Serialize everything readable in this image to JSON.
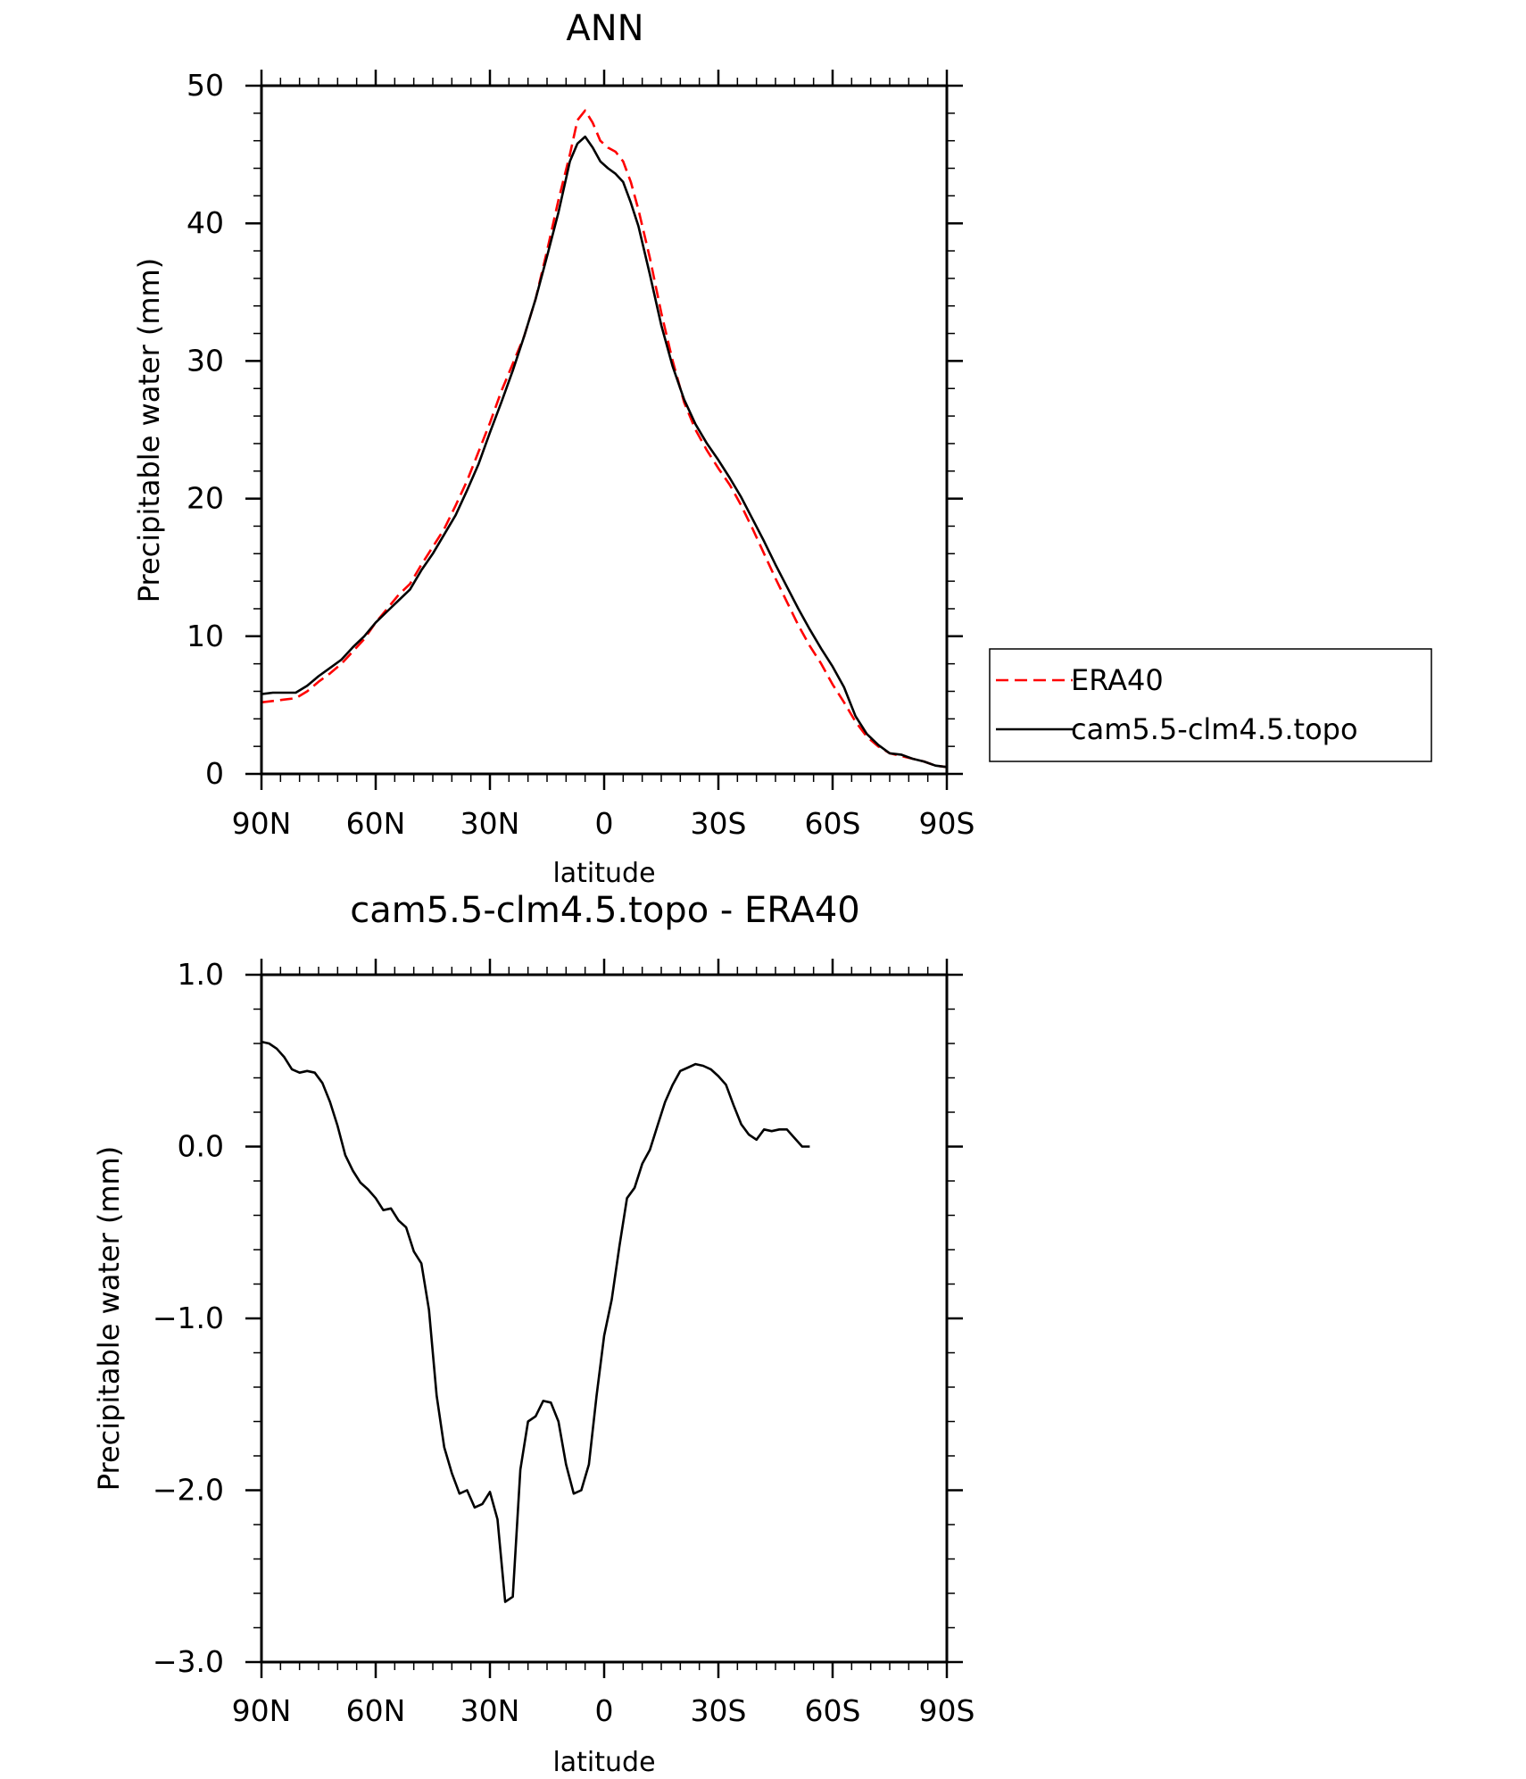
{
  "chart_data": [
    {
      "type": "line",
      "title": "ANN",
      "xlabel": "latitude",
      "ylabel": "Precipitable water (mm)",
      "xlim": [
        -90,
        90
      ],
      "ylim": [
        0,
        50
      ],
      "x_ticks": [
        {
          "value": -90,
          "label": "90N"
        },
        {
          "value": -60,
          "label": "60N"
        },
        {
          "value": -30,
          "label": "30N"
        },
        {
          "value": 0,
          "label": "0"
        },
        {
          "value": 30,
          "label": "30S"
        },
        {
          "value": 60,
          "label": "60S"
        },
        {
          "value": 90,
          "label": "90S"
        }
      ],
      "y_ticks": [
        {
          "value": 0,
          "label": "0"
        },
        {
          "value": 10,
          "label": "10"
        },
        {
          "value": 20,
          "label": "20"
        },
        {
          "value": 30,
          "label": "30"
        },
        {
          "value": 40,
          "label": "40"
        },
        {
          "value": 50,
          "label": "50"
        }
      ],
      "legend": {
        "position": "right"
      },
      "series": [
        {
          "name": "ERA40",
          "color": "#ff0000",
          "style": "dashed",
          "points": [
            [
              -90,
              5.2
            ],
            [
              -87,
              5.3
            ],
            [
              -84,
              5.4
            ],
            [
              -81,
              5.5
            ],
            [
              -78,
              6.0
            ],
            [
              -75,
              6.7
            ],
            [
              -72,
              7.3
            ],
            [
              -69,
              8.0
            ],
            [
              -66,
              8.9
            ],
            [
              -63,
              9.8
            ],
            [
              -60,
              11.0
            ],
            [
              -57,
              12.0
            ],
            [
              -54,
              13.0
            ],
            [
              -51,
              13.8
            ],
            [
              -48,
              15.2
            ],
            [
              -45,
              16.5
            ],
            [
              -42,
              17.8
            ],
            [
              -39,
              19.5
            ],
            [
              -36,
              21.3
            ],
            [
              -33,
              23.4
            ],
            [
              -30,
              25.5
            ],
            [
              -27,
              27.8
            ],
            [
              -24,
              29.8
            ],
            [
              -21,
              31.8
            ],
            [
              -18,
              34.5
            ],
            [
              -15,
              38.0
            ],
            [
              -12,
              41.7
            ],
            [
              -9,
              45.0
            ],
            [
              -7,
              47.5
            ],
            [
              -5,
              48.2
            ],
            [
              -3,
              47.3
            ],
            [
              -1,
              46.0
            ],
            [
              1,
              45.5
            ],
            [
              3,
              45.2
            ],
            [
              5,
              44.5
            ],
            [
              7,
              43.0
            ],
            [
              9,
              41.0
            ],
            [
              12,
              37.5
            ],
            [
              15,
              33.5
            ],
            [
              18,
              30.0
            ],
            [
              21,
              27.0
            ],
            [
              24,
              25.0
            ],
            [
              27,
              23.5
            ],
            [
              30,
              22.2
            ],
            [
              33,
              21.0
            ],
            [
              36,
              19.5
            ],
            [
              39,
              17.8
            ],
            [
              42,
              16.0
            ],
            [
              45,
              14.2
            ],
            [
              48,
              12.5
            ],
            [
              51,
              10.8
            ],
            [
              54,
              9.3
            ],
            [
              57,
              8.0
            ],
            [
              60,
              6.5
            ],
            [
              63,
              5.2
            ],
            [
              66,
              3.8
            ],
            [
              69,
              2.7
            ],
            [
              72,
              2.0
            ],
            [
              75,
              1.5
            ],
            [
              78,
              1.3
            ],
            [
              81,
              1.1
            ],
            [
              84,
              0.9
            ],
            [
              87,
              0.6
            ],
            [
              90,
              0.5
            ]
          ]
        },
        {
          "name": "cam5.5-clm4.5.topo",
          "color": "#000000",
          "style": "solid",
          "points": [
            [
              -90,
              5.8
            ],
            [
              -87,
              5.9
            ],
            [
              -84,
              5.9
            ],
            [
              -81,
              5.9
            ],
            [
              -78,
              6.4
            ],
            [
              -75,
              7.1
            ],
            [
              -72,
              7.7
            ],
            [
              -69,
              8.3
            ],
            [
              -66,
              9.2
            ],
            [
              -63,
              10.0
            ],
            [
              -60,
              11.0
            ],
            [
              -57,
              11.8
            ],
            [
              -54,
              12.6
            ],
            [
              -51,
              13.4
            ],
            [
              -48,
              14.8
            ],
            [
              -45,
              16.0
            ],
            [
              -42,
              17.4
            ],
            [
              -39,
              18.8
            ],
            [
              -36,
              20.6
            ],
            [
              -33,
              22.5
            ],
            [
              -30,
              24.8
            ],
            [
              -27,
              27.0
            ],
            [
              -24,
              29.3
            ],
            [
              -21,
              31.8
            ],
            [
              -18,
              34.5
            ],
            [
              -15,
              37.6
            ],
            [
              -12,
              40.8
            ],
            [
              -9,
              44.5
            ],
            [
              -7,
              45.8
            ],
            [
              -5,
              46.3
            ],
            [
              -3,
              45.5
            ],
            [
              -1,
              44.5
            ],
            [
              1,
              44.0
            ],
            [
              3,
              43.6
            ],
            [
              5,
              43.0
            ],
            [
              7,
              41.5
            ],
            [
              9,
              39.8
            ],
            [
              12,
              36.3
            ],
            [
              15,
              32.6
            ],
            [
              18,
              29.6
            ],
            [
              21,
              27.2
            ],
            [
              24,
              25.4
            ],
            [
              27,
              24.0
            ],
            [
              30,
              22.8
            ],
            [
              33,
              21.5
            ],
            [
              36,
              20.1
            ],
            [
              39,
              18.5
            ],
            [
              42,
              16.9
            ],
            [
              45,
              15.2
            ],
            [
              48,
              13.6
            ],
            [
              51,
              12.0
            ],
            [
              54,
              10.5
            ],
            [
              57,
              9.1
            ],
            [
              60,
              7.8
            ],
            [
              63,
              6.3
            ],
            [
              66,
              4.2
            ],
            [
              69,
              2.9
            ],
            [
              72,
              2.1
            ],
            [
              75,
              1.5
            ],
            [
              78,
              1.4
            ],
            [
              81,
              1.1
            ],
            [
              84,
              0.9
            ],
            [
              87,
              0.6
            ],
            [
              90,
              0.5
            ]
          ]
        }
      ]
    },
    {
      "type": "line",
      "title": "cam5.5-clm4.5.topo - ERA40",
      "xlabel": "latitude",
      "ylabel": "Precipitable water (mm)",
      "xlim": [
        -90,
        90
      ],
      "ylim": [
        -3.0,
        1.0
      ],
      "x_ticks": [
        {
          "value": -90,
          "label": "90N"
        },
        {
          "value": -60,
          "label": "60N"
        },
        {
          "value": -30,
          "label": "30N"
        },
        {
          "value": 0,
          "label": "0"
        },
        {
          "value": 30,
          "label": "30S"
        },
        {
          "value": 60,
          "label": "60S"
        },
        {
          "value": 90,
          "label": "90S"
        }
      ],
      "y_ticks": [
        {
          "value": -3.0,
          "label": "−3.0"
        },
        {
          "value": -2.0,
          "label": "−2.0"
        },
        {
          "value": -1.0,
          "label": "−1.0"
        },
        {
          "value": 0.0,
          "label": "0.0"
        },
        {
          "value": 1.0,
          "label": "1.0"
        }
      ],
      "series": [
        {
          "color": "#000000",
          "style": "solid",
          "points": [
            [
              -90,
              0.61
            ],
            [
              -88,
              0.6
            ],
            [
              -86,
              0.57
            ],
            [
              -84,
              0.52
            ],
            [
              -82,
              0.45
            ],
            [
              -80,
              0.43
            ],
            [
              -78,
              0.44
            ],
            [
              -76,
              0.43
            ],
            [
              -74,
              0.37
            ],
            [
              -72,
              0.26
            ],
            [
              -70,
              0.12
            ],
            [
              -68,
              -0.05
            ],
            [
              -66,
              -0.14
            ],
            [
              -64,
              -0.21
            ],
            [
              -62,
              -0.25
            ],
            [
              -60,
              -0.3
            ],
            [
              -58,
              -0.37
            ],
            [
              -56,
              -0.36
            ],
            [
              -54,
              -0.43
            ],
            [
              -52,
              -0.47
            ],
            [
              -50,
              -0.61
            ],
            [
              -48,
              -0.68
            ],
            [
              -46,
              -0.95
            ],
            [
              -44,
              -1.45
            ],
            [
              -42,
              -1.75
            ],
            [
              -40,
              -1.9
            ],
            [
              -38,
              -2.02
            ],
            [
              -36,
              -2.0
            ],
            [
              -34,
              -2.1
            ],
            [
              -32,
              -2.08
            ],
            [
              -30,
              -2.01
            ],
            [
              -28,
              -2.17
            ],
            [
              -26,
              -2.65
            ],
            [
              -24,
              -2.62
            ],
            [
              -22,
              -1.88
            ],
            [
              -20,
              -1.6
            ],
            [
              -18,
              -1.57
            ],
            [
              -16,
              -1.48
            ],
            [
              -14,
              -1.49
            ],
            [
              -12,
              -1.6
            ],
            [
              -10,
              -1.85
            ],
            [
              -8,
              -2.02
            ],
            [
              -6,
              -2.0
            ],
            [
              -4,
              -1.85
            ],
            [
              -2,
              -1.45
            ],
            [
              0,
              -1.1
            ],
            [
              2,
              -0.89
            ],
            [
              4,
              -0.58
            ],
            [
              6,
              -0.3
            ],
            [
              8,
              -0.24
            ],
            [
              10,
              -0.1
            ],
            [
              12,
              -0.02
            ],
            [
              14,
              0.12
            ],
            [
              16,
              0.26
            ],
            [
              18,
              0.36
            ],
            [
              20,
              0.44
            ],
            [
              22,
              0.46
            ],
            [
              24,
              0.48
            ],
            [
              26,
              0.47
            ],
            [
              28,
              0.45
            ],
            [
              30,
              0.41
            ],
            [
              32,
              0.36
            ],
            [
              34,
              0.24
            ],
            [
              36,
              0.13
            ],
            [
              38,
              0.07
            ],
            [
              40,
              0.04
            ],
            [
              42,
              0.1
            ],
            [
              44,
              0.09
            ],
            [
              46,
              0.1
            ],
            [
              48,
              0.1
            ],
            [
              50,
              0.05
            ],
            [
              52,
              0.0
            ],
            [
              54,
              0.0
            ]
          ]
        }
      ]
    }
  ]
}
